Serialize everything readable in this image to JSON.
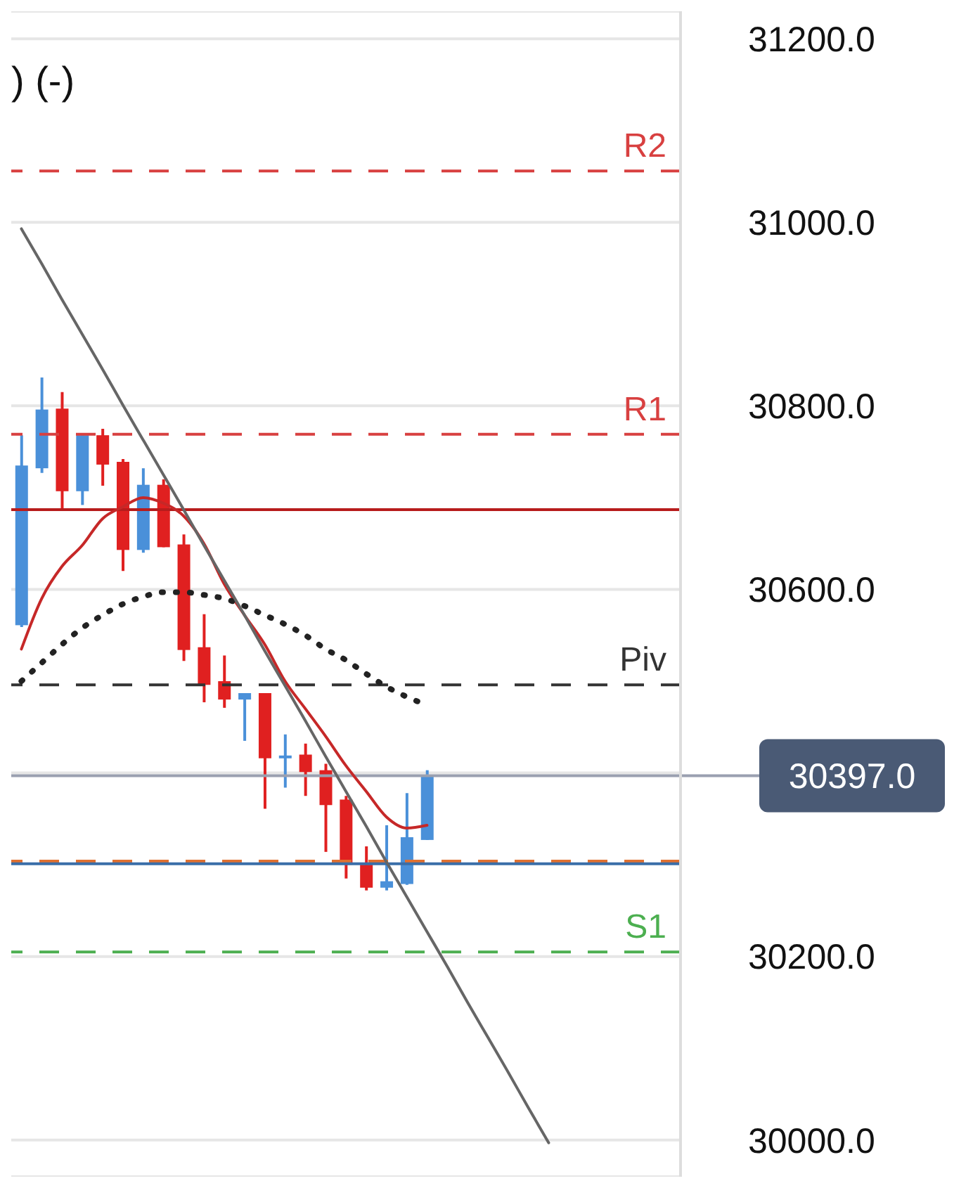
{
  "chart_data": {
    "type": "candlestick",
    "title": ") (-)",
    "categories": [
      null,
      null,
      null,
      null,
      null,
      null,
      null,
      null,
      null,
      null,
      null,
      null,
      null,
      null,
      null,
      null,
      null,
      null,
      null,
      null,
      null,
      null,
      null,
      null,
      null,
      null,
      null,
      null,
      null,
      null,
      null,
      null,
      null
    ],
    "ohlc": [
      [
        30561,
        30768,
        30559,
        30735
      ],
      [
        30732,
        30831,
        30727,
        30796
      ],
      [
        30797,
        30815,
        30688,
        30707
      ],
      [
        30707,
        30768,
        30692,
        30768
      ],
      [
        30768,
        30775,
        30713,
        30736
      ],
      [
        30739,
        30742,
        30620,
        30643
      ],
      [
        30643,
        30732,
        30640,
        30714
      ],
      [
        30714,
        30720,
        30646,
        30646
      ],
      [
        30649,
        30660,
        30522,
        30534
      ],
      [
        30537,
        30573,
        30477,
        30496
      ],
      [
        30500,
        30528,
        30471,
        30480
      ],
      [
        30480,
        30487,
        30435,
        30487
      ],
      [
        30487,
        30487,
        30361,
        30416
      ],
      [
        30416,
        30442,
        30384,
        30419
      ],
      [
        30420,
        30432,
        30375,
        30401
      ],
      [
        30403,
        30410,
        30314,
        30365
      ],
      [
        30371,
        30375,
        30285,
        30300
      ],
      [
        30300,
        30320,
        30272,
        30275
      ],
      [
        30275,
        30343,
        30272,
        30282
      ],
      [
        30279,
        30378,
        30278,
        30330
      ],
      [
        30327,
        30403,
        30327,
        30397
      ],
      null,
      null,
      null,
      null,
      null,
      null,
      null,
      null,
      null,
      null,
      null,
      null
    ],
    "colors": [
      "#4a90d9",
      "#4a90d9",
      "#e02020",
      "#4a90d9",
      "#e02020",
      "#e02020",
      "#4a90d9",
      "#e02020",
      "#e02020",
      "#e02020",
      "#e02020",
      "#4a90d9",
      "#e02020",
      "#4a90d9",
      "#e02020",
      "#e02020",
      "#e02020",
      "#e02020",
      "#4a90d9",
      "#4a90d9",
      "#4a90d9",
      null,
      null,
      null,
      null,
      null,
      null,
      null,
      null,
      null,
      null,
      null,
      null
    ],
    "series": [
      {
        "type": "line",
        "color": "#c62828",
        "values": [
          30535,
          30590,
          30625,
          30648,
          30677,
          30690,
          30700,
          30694,
          30680,
          30650,
          30606,
          30572,
          30540,
          30500,
          30470,
          30440,
          30408,
          30380,
          30352,
          30340,
          30343,
          null,
          null,
          null,
          null,
          null,
          null,
          null,
          null,
          null,
          null,
          null,
          null
        ]
      },
      {
        "type": "line",
        "color": "#222222",
        "line_style": "dotted",
        "values": [
          30500,
          30520,
          30540,
          30558,
          30572,
          30584,
          30592,
          30597,
          30597,
          30594,
          30590,
          30582,
          30572,
          30562,
          30550,
          30535,
          30523,
          30508,
          30494,
          30483,
          30474,
          null,
          null,
          null,
          null,
          null,
          null,
          null,
          null,
          null,
          null,
          null,
          null
        ]
      },
      {
        "type": "line",
        "color": "#666666",
        "values": [
          30993,
          30955,
          30916,
          30878,
          30840,
          30801,
          30763,
          30725,
          30687,
          30648,
          30610,
          30572,
          30533,
          30495,
          30457,
          30418,
          30380,
          30342,
          30303,
          30265,
          30227,
          30189,
          30150,
          30112,
          30074,
          30035,
          29997,
          null,
          null,
          null,
          null,
          null,
          null
        ]
      }
    ],
    "ylim": [
      29960,
      31230
    ],
    "yticks": [
      {
        "value": 30000,
        "label": "30000.0"
      },
      {
        "value": 30200,
        "label": "30200.0"
      },
      {
        "value": 30400,
        "label": null
      },
      {
        "value": 30600,
        "label": "30600.0"
      },
      {
        "value": 30800,
        "label": "30800.0"
      },
      {
        "value": 31000,
        "label": "31000.0"
      },
      {
        "value": 31200,
        "label": "31200.0"
      }
    ],
    "grid": "y",
    "tick_labels": "y",
    "ref_lines": [
      {
        "axis": "y",
        "value": 31056,
        "label": "R2",
        "color": "#d84040",
        "line_style": "dashed"
      },
      {
        "axis": "y",
        "value": 30769,
        "label": "R1",
        "color": "#d84040",
        "line_style": "dashed"
      },
      {
        "axis": "y",
        "value": 30687,
        "color": "#b71c1c",
        "line_style": "solid"
      },
      {
        "axis": "y",
        "value": 30496,
        "label": "Piv",
        "color": "#333333",
        "line_style": "dashed"
      },
      {
        "axis": "y",
        "value": 30397,
        "label": "30397.0",
        "color": "#9aa0b0",
        "line_style": "solid"
      },
      {
        "axis": "y",
        "value": 30304,
        "color": "#e07030",
        "line_style": "dashed"
      },
      {
        "axis": "y",
        "value": 30301,
        "color": "#3a6ea8",
        "line_style": "solid"
      },
      {
        "axis": "y",
        "value": 30205,
        "label": "S1",
        "color": "#4caf50",
        "line_style": "dashed"
      }
    ]
  }
}
